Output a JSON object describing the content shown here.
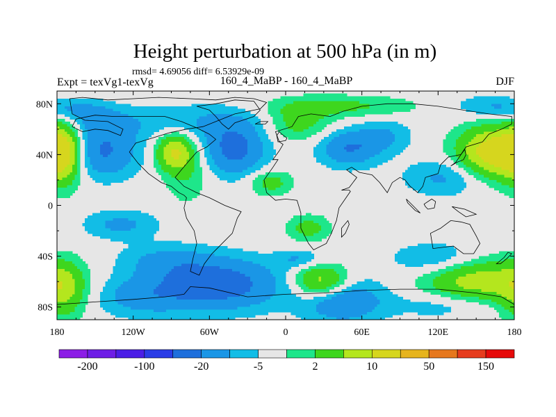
{
  "chart_data": {
    "type": "heatmap",
    "title": "Height perturbation at 500 hPa (in m)",
    "subtitle": "rmsd= 4.69056 diff= 6.53929e-09",
    "left_label": "Expt = texVg1-texVg",
    "center_label": "160_4_MaBP - 160_4_MaBP",
    "right_label": "DJF",
    "xlim": [
      -180,
      180
    ],
    "ylim": [
      -90,
      90
    ],
    "xticks": [
      {
        "value": -180,
        "label": "180"
      },
      {
        "value": -120,
        "label": "120W"
      },
      {
        "value": -60,
        "label": "60W"
      },
      {
        "value": 0,
        "label": "0"
      },
      {
        "value": 60,
        "label": "60E"
      },
      {
        "value": 120,
        "label": "120E"
      },
      {
        "value": 180,
        "label": "180"
      }
    ],
    "yticks": [
      {
        "value": 80,
        "label": "80N"
      },
      {
        "value": 40,
        "label": "40N"
      },
      {
        "value": 0,
        "label": "0"
      },
      {
        "value": -40,
        "label": "40S"
      },
      {
        "value": -80,
        "label": "80S"
      }
    ],
    "colors": {
      "zero": "#e6e6e6",
      "neg1": "#12bde6",
      "neg2": "#1a96e6",
      "neg3": "#1e6fdc",
      "pos1": "#1ee68a",
      "pos2": "#3ed61e",
      "pos3": "#b4e61e",
      "pos4": "#d6d61e",
      "outline": "#000000"
    },
    "colorbar": {
      "colors": [
        "#8c1ee6",
        "#6e1ee6",
        "#4b1ee6",
        "#2a3ce6",
        "#1e6fdc",
        "#1a96e6",
        "#12bde6",
        "#e6e6e6",
        "#1ee68a",
        "#3ed61e",
        "#b4e61e",
        "#d6d61e",
        "#e6b41e",
        "#e6781e",
        "#e63c1e",
        "#e60a0a"
      ],
      "labels": [
        "-200",
        "-100",
        "-20",
        "-5",
        "2",
        "10",
        "50",
        "150"
      ]
    },
    "features": [
      {
        "lon": -145,
        "lat": 42,
        "sx": 20,
        "sy": 14,
        "amp": -11
      },
      {
        "lon": -145,
        "lat": 65,
        "sx": 25,
        "sy": 9,
        "amp": -5
      },
      {
        "lon": -40,
        "lat": 44,
        "sx": 17,
        "sy": 14,
        "amp": -12
      },
      {
        "lon": -65,
        "lat": 66,
        "sx": 35,
        "sy": 10,
        "amp": -5
      },
      {
        "lon": -165,
        "lat": 75,
        "sx": 18,
        "sy": 6,
        "amp": -5
      },
      {
        "lon": 50,
        "lat": 45,
        "sx": 17,
        "sy": 10,
        "amp": -10
      },
      {
        "lon": 78,
        "lat": 55,
        "sx": 15,
        "sy": 9,
        "amp": -5
      },
      {
        "lon": 125,
        "lat": 22,
        "sx": 22,
        "sy": 10,
        "amp": -6
      },
      {
        "lon": 160,
        "lat": 78,
        "sx": 20,
        "sy": 6,
        "amp": -5
      },
      {
        "lon": -88,
        "lat": 42,
        "sx": 10,
        "sy": 10,
        "amp": 14
      },
      {
        "lon": -78,
        "lat": 28,
        "sx": 12,
        "sy": 18,
        "amp": 5
      },
      {
        "lon": -175,
        "lat": 42,
        "sx": 10,
        "sy": 18,
        "amp": 14
      },
      {
        "lon": 165,
        "lat": 42,
        "sx": 20,
        "sy": 14,
        "amp": 20
      },
      {
        "lon": 10,
        "lat": 65,
        "sx": 18,
        "sy": 10,
        "amp": 7
      },
      {
        "lon": 45,
        "lat": 78,
        "sx": 40,
        "sy": 6,
        "amp": 6
      },
      {
        "lon": -12,
        "lat": 18,
        "sx": 12,
        "sy": 7,
        "amp": 7
      },
      {
        "lon": -130,
        "lat": -15,
        "sx": 20,
        "sy": 8,
        "amp": -6
      },
      {
        "lon": -95,
        "lat": -43,
        "sx": 25,
        "sy": 9,
        "amp": -5
      },
      {
        "lon": -55,
        "lat": -62,
        "sx": 35,
        "sy": 14,
        "amp": -14
      },
      {
        "lon": -115,
        "lat": -72,
        "sx": 25,
        "sy": 11,
        "amp": -6
      },
      {
        "lon": 10,
        "lat": -42,
        "sx": 12,
        "sy": 5,
        "amp": -5
      },
      {
        "lon": 45,
        "lat": -75,
        "sx": 22,
        "sy": 12,
        "amp": -10
      },
      {
        "lon": 120,
        "lat": -42,
        "sx": 25,
        "sy": 9,
        "amp": -6
      },
      {
        "lon": 130,
        "lat": -78,
        "sx": 30,
        "sy": 8,
        "amp": -5
      },
      {
        "lon": 28,
        "lat": -60,
        "sx": 15,
        "sy": 9,
        "amp": 14
      },
      {
        "lon": 150,
        "lat": -60,
        "sx": 28,
        "sy": 13,
        "amp": 13
      },
      {
        "lon": -175,
        "lat": -68,
        "sx": 12,
        "sy": 16,
        "amp": 10
      },
      {
        "lon": 18,
        "lat": -18,
        "sx": 12,
        "sy": 7,
        "amp": 7
      }
    ],
    "coastline": [
      [
        [
          -170,
          84
        ],
        [
          -160,
          85
        ],
        [
          -140,
          83
        ],
        [
          -120,
          84
        ],
        [
          -100,
          85
        ],
        [
          -75,
          84
        ],
        [
          -55,
          83
        ],
        [
          -40,
          85
        ],
        [
          -25,
          84
        ],
        [
          -15,
          81
        ],
        [
          -20,
          76
        ],
        [
          -40,
          72
        ],
        [
          -55,
          66
        ],
        [
          -65,
          62
        ],
        [
          -78,
          60
        ],
        [
          -92,
          57
        ],
        [
          -105,
          53
        ],
        [
          -118,
          49
        ],
        [
          -123,
          42
        ],
        [
          -116,
          33
        ],
        [
          -108,
          25
        ],
        [
          -98,
          18
        ],
        [
          -90,
          15
        ],
        [
          -84,
          10
        ],
        [
          -80,
          8
        ],
        [
          -78,
          6
        ],
        [
          -80,
          -2
        ],
        [
          -78,
          -10
        ],
        [
          -72,
          -20
        ],
        [
          -70,
          -30
        ],
        [
          -73,
          -42
        ],
        [
          -75,
          -52
        ],
        [
          -68,
          -55
        ],
        [
          -64,
          -46
        ],
        [
          -58,
          -38
        ],
        [
          -50,
          -30
        ],
        [
          -42,
          -22
        ],
        [
          -38,
          -10
        ],
        [
          -35,
          -5
        ],
        [
          -48,
          0
        ],
        [
          -60,
          6
        ],
        [
          -70,
          10
        ],
        [
          -80,
          15
        ],
        [
          -87,
          22
        ],
        [
          -82,
          28
        ],
        [
          -77,
          34
        ],
        [
          -70,
          42
        ],
        [
          -62,
          46
        ],
        [
          -55,
          52
        ],
        [
          -60,
          56
        ],
        [
          -70,
          61
        ],
        [
          -82,
          66
        ],
        [
          -95,
          70
        ],
        [
          -115,
          70
        ],
        [
          -135,
          70
        ],
        [
          -150,
          71
        ],
        [
          -165,
          68
        ],
        [
          -168,
          62
        ],
        [
          -160,
          58
        ],
        [
          -150,
          60
        ],
        [
          -140,
          59
        ],
        [
          -130,
          55
        ],
        [
          -128,
          60
        ],
        [
          -140,
          66
        ],
        [
          -158,
          67
        ],
        [
          -168,
          72
        ],
        [
          -170,
          84
        ]
      ],
      [
        [
          -10,
          36
        ],
        [
          -5,
          43
        ],
        [
          -2,
          48
        ],
        [
          -5,
          50
        ],
        [
          -8,
          58
        ],
        [
          5,
          62
        ],
        [
          10,
          70
        ],
        [
          20,
          72
        ],
        [
          35,
          70
        ],
        [
          45,
          74
        ],
        [
          60,
          78
        ],
        [
          80,
          80
        ],
        [
          100,
          80
        ],
        [
          120,
          78
        ],
        [
          140,
          75
        ],
        [
          160,
          72
        ],
        [
          178,
          70
        ],
        [
          178,
          64
        ],
        [
          170,
          60
        ],
        [
          160,
          56
        ],
        [
          155,
          50
        ],
        [
          142,
          46
        ],
        [
          138,
          40
        ],
        [
          128,
          38
        ],
        [
          122,
          32
        ],
        [
          120,
          25
        ],
        [
          110,
          22
        ],
        [
          108,
          15
        ],
        [
          104,
          10
        ],
        [
          98,
          15
        ],
        [
          94,
          20
        ],
        [
          90,
          22
        ],
        [
          84,
          18
        ],
        [
          80,
          10
        ],
        [
          74,
          18
        ],
        [
          68,
          24
        ],
        [
          58,
          26
        ],
        [
          52,
          30
        ],
        [
          48,
          28
        ],
        [
          56,
          22
        ],
        [
          50,
          14
        ],
        [
          44,
          12
        ],
        [
          50,
          12
        ],
        [
          51,
          11
        ],
        [
          42,
          -2
        ],
        [
          40,
          -12
        ],
        [
          36,
          -22
        ],
        [
          32,
          -30
        ],
        [
          22,
          -35
        ],
        [
          18,
          -30
        ],
        [
          12,
          -18
        ],
        [
          12,
          -6
        ],
        [
          9,
          4
        ],
        [
          0,
          5
        ],
        [
          -8,
          4
        ],
        [
          -15,
          10
        ],
        [
          -17,
          20
        ],
        [
          -10,
          30
        ],
        [
          -6,
          36
        ],
        [
          -10,
          36
        ]
      ],
      [
        [
          114,
          -22
        ],
        [
          122,
          -18
        ],
        [
          130,
          -12
        ],
        [
          138,
          -13
        ],
        [
          145,
          -15
        ],
        [
          150,
          -24
        ],
        [
          153,
          -30
        ],
        [
          148,
          -38
        ],
        [
          140,
          -38
        ],
        [
          132,
          -32
        ],
        [
          116,
          -34
        ],
        [
          114,
          -22
        ]
      ],
      [
        [
          -75,
          -64
        ],
        [
          -60,
          -65
        ],
        [
          -30,
          -72
        ],
        [
          0,
          -70
        ],
        [
          30,
          -69
        ],
        [
          60,
          -67
        ],
        [
          90,
          -66
        ],
        [
          120,
          -66
        ],
        [
          150,
          -69
        ],
        [
          170,
          -72
        ],
        [
          180,
          -78
        ],
        [
          180,
          -90
        ],
        [
          -180,
          -90
        ],
        [
          -180,
          -78
        ],
        [
          -150,
          -76
        ],
        [
          -120,
          -74
        ],
        [
          -95,
          -72
        ],
        [
          -80,
          -70
        ],
        [
          -75,
          -64
        ]
      ],
      [
        [
          -45,
          60
        ],
        [
          -40,
          65
        ],
        [
          -25,
          70
        ],
        [
          -20,
          75
        ],
        [
          -25,
          82
        ],
        [
          -40,
          83
        ],
        [
          -55,
          80
        ],
        [
          -70,
          78
        ],
        [
          -60,
          75
        ],
        [
          -55,
          70
        ],
        [
          -50,
          64
        ],
        [
          -45,
          60
        ]
      ],
      [
        [
          -6,
          50
        ],
        [
          0,
          51
        ],
        [
          1,
          53
        ],
        [
          -3,
          56
        ],
        [
          -5,
          58
        ],
        [
          -7,
          55
        ],
        [
          -6,
          50
        ]
      ],
      [
        [
          130,
          31
        ],
        [
          135,
          34
        ],
        [
          140,
          36
        ],
        [
          142,
          40
        ],
        [
          141,
          44
        ],
        [
          138,
          40
        ],
        [
          134,
          34
        ],
        [
          130,
          31
        ]
      ],
      [
        [
          95,
          5
        ],
        [
          100,
          0
        ],
        [
          106,
          -6
        ],
        [
          102,
          -4
        ],
        [
          96,
          2
        ],
        [
          95,
          5
        ]
      ],
      [
        [
          109,
          1
        ],
        [
          115,
          5
        ],
        [
          118,
          3
        ],
        [
          117,
          -2
        ],
        [
          112,
          -3
        ],
        [
          110,
          -1
        ],
        [
          109,
          1
        ]
      ],
      [
        [
          131,
          -1
        ],
        [
          141,
          -3
        ],
        [
          150,
          -7
        ],
        [
          142,
          -9
        ],
        [
          136,
          -5
        ],
        [
          131,
          -1
        ]
      ],
      [
        [
          44,
          -25
        ],
        [
          47,
          -22
        ],
        [
          50,
          -15
        ],
        [
          49,
          -12
        ],
        [
          44,
          -18
        ],
        [
          44,
          -25
        ]
      ],
      [
        [
          -24,
          64
        ],
        [
          -16,
          64
        ],
        [
          -14,
          66
        ],
        [
          -20,
          66
        ],
        [
          -24,
          64
        ]
      ],
      [
        [
          166,
          -46
        ],
        [
          172,
          -41
        ],
        [
          175,
          -37
        ],
        [
          178,
          -38
        ],
        [
          174,
          -42
        ],
        [
          169,
          -46
        ],
        [
          166,
          -46
        ]
      ]
    ]
  }
}
